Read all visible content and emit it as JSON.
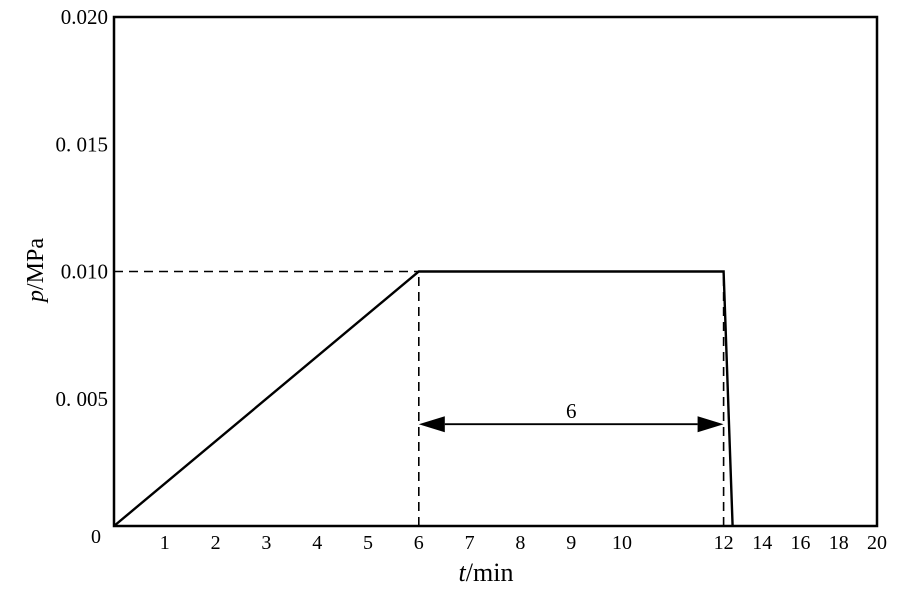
{
  "chart_data": {
    "type": "line",
    "title": "",
    "xlabel": {
      "var": "t",
      "unit": "/min"
    },
    "ylabel": {
      "var": "p",
      "unit": "/MPa"
    },
    "xlim": [
      0,
      20
    ],
    "ylim": [
      0,
      0.02
    ],
    "grid": false,
    "x_tick_labels": [
      {
        "x": 0,
        "label": "0"
      },
      {
        "x": 1,
        "label": "1"
      },
      {
        "x": 2,
        "label": "2"
      },
      {
        "x": 3,
        "label": "3"
      },
      {
        "x": 4,
        "label": "4"
      },
      {
        "x": 5,
        "label": "5"
      },
      {
        "x": 6,
        "label": "6"
      },
      {
        "x": 7,
        "label": "7"
      },
      {
        "x": 8,
        "label": "8"
      },
      {
        "x": 9,
        "label": "9"
      },
      {
        "x": 10,
        "label": "10"
      },
      {
        "x": 12,
        "label": "12"
      },
      {
        "x": 14,
        "label": "14"
      },
      {
        "x": 16,
        "label": "16"
      },
      {
        "x": 18,
        "label": "18"
      },
      {
        "x": 20,
        "label": "20"
      }
    ],
    "y_tick_labels": [
      {
        "y": 0.005,
        "label": "0. 005"
      },
      {
        "y": 0.01,
        "label": "0.010"
      },
      {
        "y": 0.015,
        "label": "0. 015"
      },
      {
        "y": 0.02,
        "label": "0.020"
      }
    ],
    "series": [
      {
        "x": [
          0,
          6,
          12,
          12.45
        ],
        "y": [
          0,
          0.01,
          0.01,
          0
        ]
      }
    ],
    "guides": [
      {
        "x1": 0,
        "y1": 0.01,
        "x2": 6,
        "y2": 0.01
      },
      {
        "x1": 6,
        "y1": 0,
        "x2": 6,
        "y2": 0.01
      },
      {
        "x1": 12,
        "y1": 0,
        "x2": 12,
        "y2": 0.01
      }
    ],
    "annotations": [
      {
        "type": "double-arrow",
        "x1": 6,
        "x2": 12,
        "y": 0.004,
        "label": "6"
      }
    ]
  }
}
